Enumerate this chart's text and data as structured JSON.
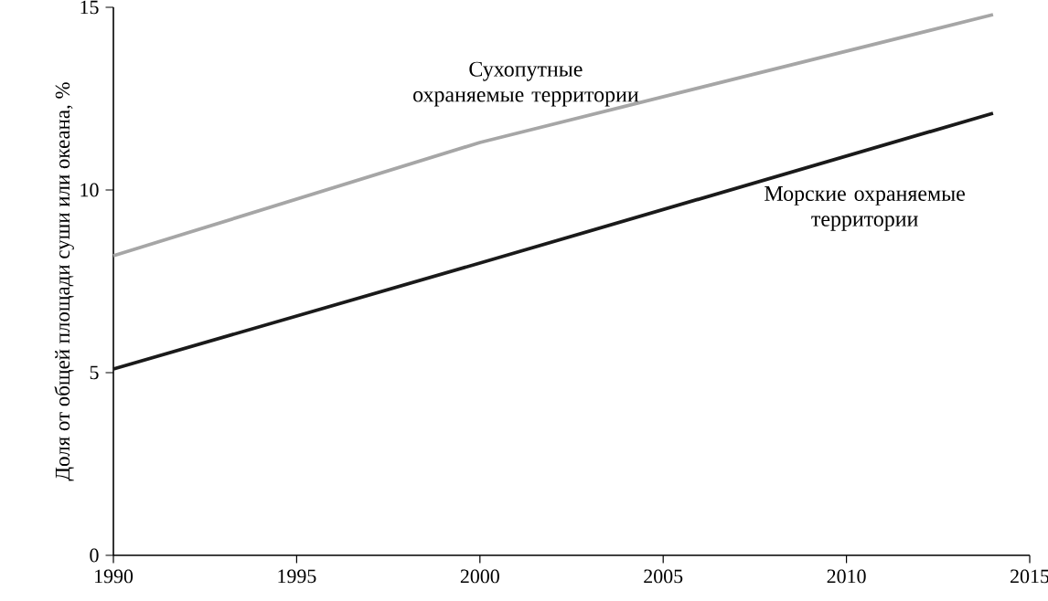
{
  "chart_data": {
    "type": "line",
    "ylabel": "Доля от общей площади суши или океана, %",
    "xlim": [
      1990,
      2015
    ],
    "ylim": [
      0,
      15
    ],
    "xticks": [
      1990,
      1995,
      2000,
      2005,
      2010,
      2015
    ],
    "yticks": [
      0,
      5,
      10,
      15
    ],
    "grid": false,
    "legend": false,
    "marker": "none",
    "line_style": "solid",
    "series": [
      {
        "name": "Сухопутные охраняемые территории",
        "color": "#a6a6a6",
        "x": [
          1990,
          2000,
          2014
        ],
        "values": [
          8.2,
          11.3,
          14.8
        ]
      },
      {
        "name": "Морские охраняемые территории",
        "color": "#1a1a1a",
        "x": [
          1990,
          2000,
          2014
        ],
        "values": [
          5.1,
          8.0,
          12.1
        ]
      }
    ]
  }
}
